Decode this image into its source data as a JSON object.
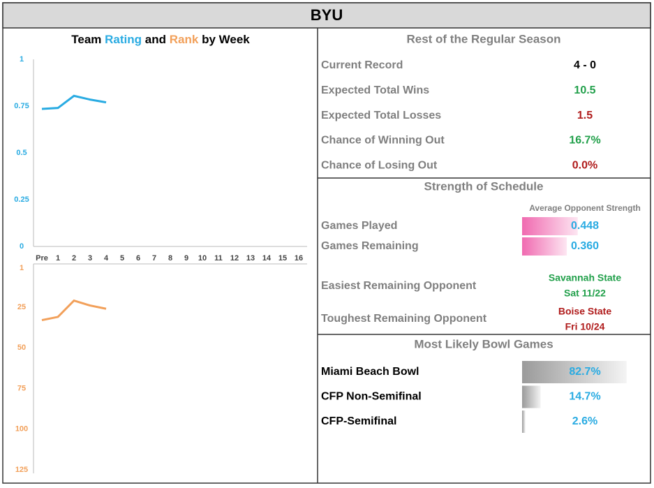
{
  "header": {
    "title": "BYU"
  },
  "left_panel": {
    "title_words": [
      "Team",
      "and",
      "by Week"
    ]
  },
  "chart_data": [
    {
      "type": "line",
      "categories": [
        "Pre",
        "1",
        "2",
        "3",
        "4",
        "5",
        "6",
        "7",
        "8",
        "9",
        "10",
        "11",
        "12",
        "13",
        "14",
        "15",
        "16"
      ],
      "series": [
        {
          "name": "Rating",
          "color": "#29abe2",
          "values": [
            0.735,
            0.74,
            0.805,
            0.785,
            0.77,
            null,
            null,
            null,
            null,
            null,
            null,
            null,
            null,
            null,
            null,
            null,
            null
          ]
        }
      ],
      "ylim": [
        0,
        1
      ],
      "yticks": [
        0,
        0.25,
        0.5,
        0.75,
        1
      ]
    },
    {
      "type": "line",
      "series": [
        {
          "name": "Rank",
          "color": "#f2a05a",
          "values": [
            33,
            31,
            21,
            24,
            26,
            null,
            null,
            null,
            null,
            null,
            null,
            null,
            null,
            null,
            null,
            null,
            null
          ]
        }
      ],
      "ylim": [
        1,
        125
      ],
      "yticks": [
        1,
        25,
        50,
        75,
        100,
        125
      ],
      "y_inverted": true
    }
  ],
  "season": {
    "title": "Rest of the Regular Season",
    "rows": [
      {
        "label": "Current Record",
        "value": "4 - 0",
        "color": "#000000"
      },
      {
        "label": "Expected Total Wins",
        "value": 10.5,
        "color": "#22a04b"
      },
      {
        "label": "Expected Total Losses",
        "value": 1.5,
        "color": "#b01c1c"
      },
      {
        "label": "Chance of Winning Out",
        "value": 16.7,
        "value_label": "16.7%",
        "color": "#22a04b"
      },
      {
        "label": "Chance of Losing Out",
        "value": 0,
        "value_label": "0.0%",
        "color": "#b01c1c"
      }
    ]
  },
  "schedule": {
    "title": "Strength of Schedule",
    "column_label": "Average Opponent Strength",
    "rows": [
      {
        "label": "Games Played",
        "value": 0.448
      },
      {
        "label": "Games Remaining",
        "value": 0.36,
        "value_label": "0.360"
      }
    ],
    "easiest": {
      "label": "Easiest Remaining Opponent",
      "opponent": "Savannah State",
      "date": "Sat 11/22"
    },
    "toughest": {
      "label": "Toughest Remaining Opponent",
      "opponent": "Boise State",
      "date": "Fri 10/24"
    }
  },
  "bowls": {
    "title": "Most Likely Bowl Games",
    "rows": [
      {
        "label": "Miami Beach Bowl",
        "value": 82.7,
        "value_label": "82.7%"
      },
      {
        "label": "CFP Non-Semifinal",
        "value": 14.7,
        "value_label": "14.7%"
      },
      {
        "label": "CFP-Semifinal",
        "value": 2.6,
        "value_label": "2.6%"
      }
    ]
  }
}
